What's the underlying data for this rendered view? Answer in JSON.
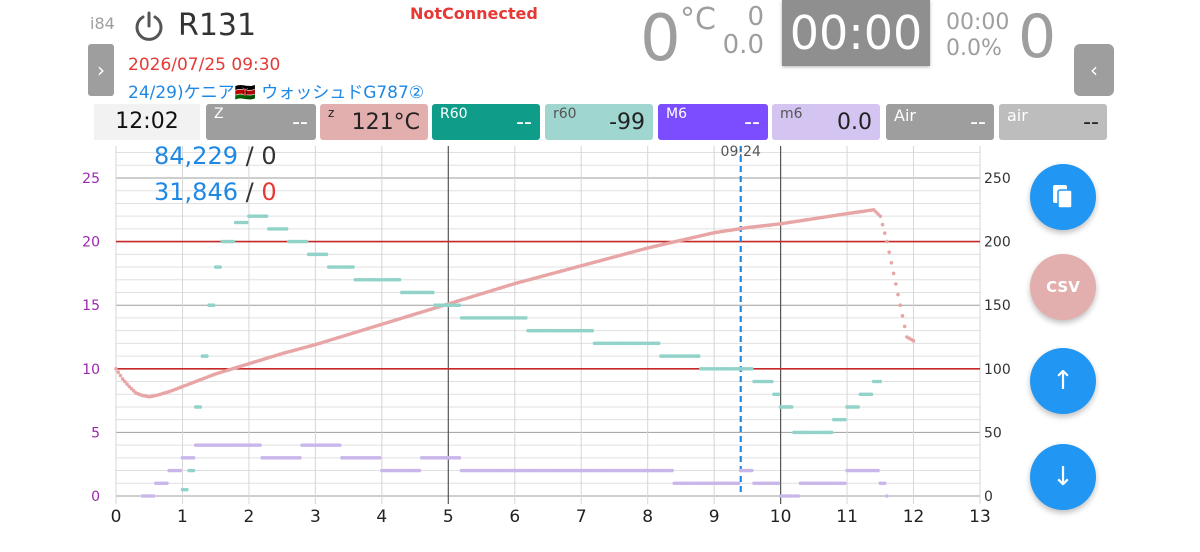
{
  "header": {
    "device_id": "i84",
    "roaster_name": "R131",
    "connection_status": "NotConnected",
    "datetime": "2026/07/25 09:30",
    "bean_name": "24/29)ケニア🇰🇪 ウォッシュドG787②",
    "bean_temp": "0",
    "temp_unit": "°C",
    "ror_top": "0",
    "ror_bottom": "0.0",
    "timer": "00:00",
    "dev_time": "00:00",
    "dev_percent": "0.0%",
    "counter": "0",
    "left_nav_icon": "chevron-right",
    "right_nav_icon": "chevron-left"
  },
  "chips": [
    {
      "key": "clock",
      "label": "",
      "value": "12:02",
      "color": "#f2f2f2"
    },
    {
      "key": "Z",
      "label": "Z",
      "value": "--",
      "color": "#9e9e9e"
    },
    {
      "key": "z",
      "label": "z",
      "value": "121°C",
      "color": "#e3aeae"
    },
    {
      "key": "R60",
      "label": "R60",
      "value": "--",
      "color": "#0f9d8a"
    },
    {
      "key": "r60",
      "label": "r60",
      "value": "-99",
      "color": "#9fd6cf"
    },
    {
      "key": "M6",
      "label": "M6",
      "value": "--",
      "color": "#7c4dff"
    },
    {
      "key": "m6",
      "label": "m6",
      "value": "0.0",
      "color": "#d4c4f2"
    },
    {
      "key": "Air",
      "label": "Air",
      "value": "--",
      "color": "#9e9e9e"
    },
    {
      "key": "air",
      "label": "air",
      "value": "--",
      "color": "#bdbdbd"
    }
  ],
  "stats": {
    "line1_a": "84,229",
    "line1_sep": " / ",
    "line1_b": "0",
    "line2_a": "31,846",
    "line2_sep": " / ",
    "line2_b": "0"
  },
  "fabs": {
    "copy_icon": "copy-icon",
    "csv_label": "CSV",
    "up_icon": "arrow-up",
    "down_icon": "arrow-down"
  },
  "chart_data": {
    "type": "scatter",
    "x_ticks": [
      "0",
      "1",
      "2",
      "3",
      "4",
      "5",
      "6",
      "7",
      "8",
      "9",
      "10",
      "11",
      "12",
      "13"
    ],
    "xlim": [
      0,
      13
    ],
    "left_ticks": [
      "0",
      "5",
      "10",
      "15",
      "20",
      "25"
    ],
    "ylim_left": [
      0,
      25
    ],
    "right_ticks": [
      "0",
      "50",
      "100",
      "150",
      "200",
      "250"
    ],
    "ylim_right": [
      0,
      250
    ],
    "marker_label": "09:24",
    "marker_x": 9.4,
    "reference_lines_left": [
      10,
      20
    ],
    "major_vlines": [
      5,
      10
    ],
    "series": [
      {
        "axis": "right",
        "color": "#e8a5a5",
        "points": [
          [
            0,
            100
          ],
          [
            0.1,
            92
          ],
          [
            0.2,
            86
          ],
          [
            0.3,
            81
          ],
          [
            0.4,
            79
          ],
          [
            0.5,
            78
          ],
          [
            0.6,
            79
          ],
          [
            0.8,
            82
          ],
          [
            1.0,
            86
          ],
          [
            1.2,
            90
          ],
          [
            1.5,
            96
          ],
          [
            2,
            104
          ],
          [
            2.5,
            112
          ],
          [
            3,
            119
          ],
          [
            3.5,
            127
          ],
          [
            4,
            135
          ],
          [
            4.5,
            143
          ],
          [
            5,
            151
          ],
          [
            5.5,
            159
          ],
          [
            6,
            167
          ],
          [
            6.5,
            174
          ],
          [
            7,
            181
          ],
          [
            7.5,
            188
          ],
          [
            8,
            195
          ],
          [
            8.5,
            201
          ],
          [
            9,
            207
          ],
          [
            9.5,
            211
          ],
          [
            10,
            214
          ],
          [
            10.5,
            218
          ],
          [
            11,
            222
          ],
          [
            11.4,
            225
          ],
          [
            11.5,
            220
          ],
          [
            11.6,
            200
          ],
          [
            11.7,
            175
          ],
          [
            11.8,
            150
          ],
          [
            11.9,
            125
          ],
          [
            12.0,
            122
          ]
        ]
      },
      {
        "axis": "left",
        "color": "#92d3c9",
        "points": [
          [
            1.0,
            0.5
          ],
          [
            1.1,
            2
          ],
          [
            1.2,
            7
          ],
          [
            1.3,
            11
          ],
          [
            1.4,
            15
          ],
          [
            1.5,
            18
          ],
          [
            1.6,
            20
          ],
          [
            1.8,
            21.5
          ],
          [
            2.0,
            22
          ],
          [
            2.3,
            21
          ],
          [
            2.6,
            20
          ],
          [
            2.9,
            19
          ],
          [
            3.2,
            18
          ],
          [
            3.6,
            17
          ],
          [
            4.0,
            17
          ],
          [
            4.3,
            16
          ],
          [
            4.8,
            15
          ],
          [
            5.2,
            14
          ],
          [
            5.8,
            14
          ],
          [
            6.2,
            13
          ],
          [
            6.8,
            13
          ],
          [
            7.2,
            12
          ],
          [
            7.8,
            12
          ],
          [
            8.2,
            11
          ],
          [
            8.8,
            10
          ],
          [
            9.4,
            10
          ],
          [
            9.6,
            9
          ],
          [
            9.9,
            8
          ],
          [
            10.0,
            7
          ],
          [
            10.2,
            5
          ],
          [
            10.6,
            5
          ],
          [
            10.8,
            6
          ],
          [
            11.0,
            7
          ],
          [
            11.2,
            8
          ],
          [
            11.4,
            9
          ],
          [
            11.5,
            9
          ]
        ]
      },
      {
        "axis": "left",
        "color": "#c9b6ea",
        "points": [
          [
            0.4,
            0
          ],
          [
            0.6,
            1
          ],
          [
            0.8,
            2
          ],
          [
            1.0,
            3
          ],
          [
            1.2,
            4
          ],
          [
            1.6,
            4
          ],
          [
            2.2,
            3
          ],
          [
            2.8,
            4
          ],
          [
            3.4,
            3
          ],
          [
            4.0,
            2
          ],
          [
            4.6,
            3
          ],
          [
            5.2,
            2
          ],
          [
            6.0,
            2
          ],
          [
            6.6,
            2
          ],
          [
            7.2,
            2
          ],
          [
            7.8,
            2
          ],
          [
            8.4,
            1
          ],
          [
            8.8,
            1
          ],
          [
            9.2,
            1
          ],
          [
            9.4,
            2
          ],
          [
            9.6,
            1
          ],
          [
            10.0,
            0
          ],
          [
            10.3,
            1
          ],
          [
            10.7,
            1
          ],
          [
            11.0,
            2
          ],
          [
            11.3,
            2
          ],
          [
            11.5,
            1
          ],
          [
            11.6,
            0
          ]
        ]
      }
    ]
  }
}
